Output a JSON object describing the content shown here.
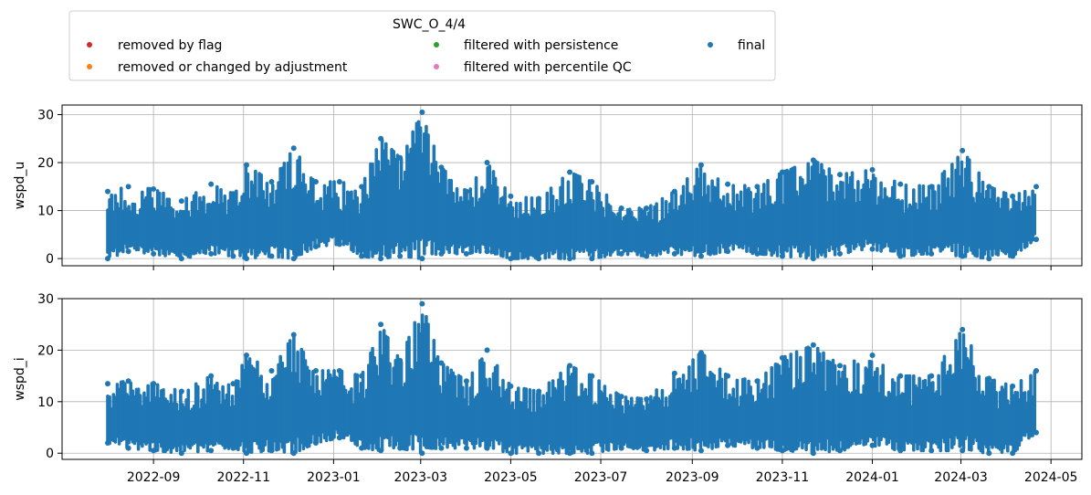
{
  "chart_data": {
    "type": "scatter",
    "legend": {
      "title": "SWC_O_4/4",
      "placement": "top-left",
      "entries": [
        {
          "label": "removed by flag",
          "color": "#d62728"
        },
        {
          "label": "filtered with persistence",
          "color": "#2ca02c"
        },
        {
          "label": "final",
          "color": "#1f77b4"
        },
        {
          "label": "removed or changed by adjustment",
          "color": "#ff7f0e"
        },
        {
          "label": "filtered with percentile QC",
          "color": "#e377c2"
        }
      ]
    },
    "x_range": [
      "2022-08-01",
      "2024-04-21"
    ],
    "xticks": [
      "2022-09",
      "2022-11",
      "2023-01",
      "2023-03",
      "2023-05",
      "2023-07",
      "2023-09",
      "2023-11",
      "2024-01",
      "2024-03",
      "2024-05"
    ],
    "grid": true,
    "series_color": "#1f77b4",
    "panels": [
      {
        "ylabel": "wspd_u",
        "yticks": [
          0,
          10,
          20,
          30
        ],
        "ylim": [
          -1.5,
          32
        ],
        "envelope": [
          {
            "x": "2022-08-01",
            "lo": 0.0,
            "hi": 14.0
          },
          {
            "x": "2022-08-15",
            "lo": 1.5,
            "hi": 15.0
          },
          {
            "x": "2022-09-01",
            "lo": 1.0,
            "hi": 14.5
          },
          {
            "x": "2022-09-20",
            "lo": 0.0,
            "hi": 12.0
          },
          {
            "x": "2022-10-10",
            "lo": 1.0,
            "hi": 15.5
          },
          {
            "x": "2022-10-25",
            "lo": 0.5,
            "hi": 13.5
          },
          {
            "x": "2022-11-03",
            "lo": 0.0,
            "hi": 19.5
          },
          {
            "x": "2022-11-20",
            "lo": 0.5,
            "hi": 16.0
          },
          {
            "x": "2022-12-05",
            "lo": 0.0,
            "hi": 23.0
          },
          {
            "x": "2022-12-20",
            "lo": 2.5,
            "hi": 16.0
          },
          {
            "x": "2023-01-05",
            "lo": 3.0,
            "hi": 16.0
          },
          {
            "x": "2023-01-20",
            "lo": 0.5,
            "hi": 15.0
          },
          {
            "x": "2023-02-02",
            "lo": 0.0,
            "hi": 25.0
          },
          {
            "x": "2023-02-15",
            "lo": 0.5,
            "hi": 21.0
          },
          {
            "x": "2023-03-02",
            "lo": 0.0,
            "hi": 30.5
          },
          {
            "x": "2023-03-15",
            "lo": 1.0,
            "hi": 19.0
          },
          {
            "x": "2023-04-01",
            "lo": 1.0,
            "hi": 14.0
          },
          {
            "x": "2023-04-15",
            "lo": 1.5,
            "hi": 20.0
          },
          {
            "x": "2023-05-01",
            "lo": 0.0,
            "hi": 13.0
          },
          {
            "x": "2023-05-20",
            "lo": 0.0,
            "hi": 12.5
          },
          {
            "x": "2023-06-10",
            "lo": 0.0,
            "hi": 18.0
          },
          {
            "x": "2023-06-25",
            "lo": 0.0,
            "hi": 16.0
          },
          {
            "x": "2023-07-15",
            "lo": 1.0,
            "hi": 10.5
          },
          {
            "x": "2023-08-01",
            "lo": 0.5,
            "hi": 10.5
          },
          {
            "x": "2023-08-20",
            "lo": 1.0,
            "hi": 14.0
          },
          {
            "x": "2023-09-07",
            "lo": 0.5,
            "hi": 19.5
          },
          {
            "x": "2023-09-25",
            "lo": 1.5,
            "hi": 15.5
          },
          {
            "x": "2023-10-15",
            "lo": 1.0,
            "hi": 15.0
          },
          {
            "x": "2023-11-01",
            "lo": 0.5,
            "hi": 18.0
          },
          {
            "x": "2023-11-22",
            "lo": 0.0,
            "hi": 20.5
          },
          {
            "x": "2023-12-10",
            "lo": 1.0,
            "hi": 17.5
          },
          {
            "x": "2024-01-01",
            "lo": 2.0,
            "hi": 18.5
          },
          {
            "x": "2024-01-20",
            "lo": 0.5,
            "hi": 15.5
          },
          {
            "x": "2024-02-10",
            "lo": 1.0,
            "hi": 15.0
          },
          {
            "x": "2024-03-02",
            "lo": 0.5,
            "hi": 22.5
          },
          {
            "x": "2024-03-20",
            "lo": 0.0,
            "hi": 15.0
          },
          {
            "x": "2024-04-05",
            "lo": 0.5,
            "hi": 13.0
          },
          {
            "x": "2024-04-21",
            "lo": 4.0,
            "hi": 15.0
          }
        ]
      },
      {
        "ylabel": "wspd_i",
        "yticks": [
          0,
          10,
          20,
          30
        ],
        "ylim": [
          -1.2,
          30
        ],
        "envelope": [
          {
            "x": "2022-08-01",
            "lo": 2.0,
            "hi": 13.5
          },
          {
            "x": "2022-08-15",
            "lo": 1.0,
            "hi": 14.0
          },
          {
            "x": "2022-09-01",
            "lo": 0.5,
            "hi": 13.5
          },
          {
            "x": "2022-09-20",
            "lo": 0.0,
            "hi": 12.0
          },
          {
            "x": "2022-10-10",
            "lo": 0.5,
            "hi": 15.0
          },
          {
            "x": "2022-10-25",
            "lo": 1.0,
            "hi": 13.5
          },
          {
            "x": "2022-11-03",
            "lo": 0.0,
            "hi": 19.0
          },
          {
            "x": "2022-11-20",
            "lo": 0.5,
            "hi": 16.0
          },
          {
            "x": "2022-12-05",
            "lo": 0.0,
            "hi": 23.0
          },
          {
            "x": "2022-12-20",
            "lo": 2.0,
            "hi": 16.0
          },
          {
            "x": "2023-01-05",
            "lo": 3.0,
            "hi": 16.0
          },
          {
            "x": "2023-01-20",
            "lo": 1.0,
            "hi": 15.0
          },
          {
            "x": "2023-02-02",
            "lo": 0.5,
            "hi": 25.0
          },
          {
            "x": "2023-02-15",
            "lo": 1.0,
            "hi": 18.0
          },
          {
            "x": "2023-03-02",
            "lo": 0.0,
            "hi": 29.0
          },
          {
            "x": "2023-03-15",
            "lo": 1.0,
            "hi": 17.5
          },
          {
            "x": "2023-04-01",
            "lo": 1.0,
            "hi": 14.0
          },
          {
            "x": "2023-04-15",
            "lo": 1.0,
            "hi": 20.0
          },
          {
            "x": "2023-05-01",
            "lo": 0.0,
            "hi": 13.0
          },
          {
            "x": "2023-05-20",
            "lo": 0.0,
            "hi": 12.0
          },
          {
            "x": "2023-06-10",
            "lo": 0.0,
            "hi": 17.0
          },
          {
            "x": "2023-06-25",
            "lo": 0.0,
            "hi": 15.0
          },
          {
            "x": "2023-07-15",
            "lo": 1.0,
            "hi": 11.0
          },
          {
            "x": "2023-08-01",
            "lo": 0.5,
            "hi": 10.5
          },
          {
            "x": "2023-08-20",
            "lo": 1.0,
            "hi": 15.5
          },
          {
            "x": "2023-09-07",
            "lo": 0.5,
            "hi": 19.5
          },
          {
            "x": "2023-09-25",
            "lo": 1.5,
            "hi": 15.0
          },
          {
            "x": "2023-10-15",
            "lo": 1.0,
            "hi": 14.0
          },
          {
            "x": "2023-11-01",
            "lo": 0.5,
            "hi": 18.5
          },
          {
            "x": "2023-11-22",
            "lo": 0.0,
            "hi": 21.0
          },
          {
            "x": "2023-12-10",
            "lo": 0.5,
            "hi": 17.0
          },
          {
            "x": "2024-01-01",
            "lo": 1.5,
            "hi": 19.0
          },
          {
            "x": "2024-01-20",
            "lo": 0.5,
            "hi": 15.0
          },
          {
            "x": "2024-02-10",
            "lo": 0.5,
            "hi": 15.0
          },
          {
            "x": "2024-03-02",
            "lo": 0.5,
            "hi": 24.0
          },
          {
            "x": "2024-03-20",
            "lo": 0.0,
            "hi": 14.5
          },
          {
            "x": "2024-04-05",
            "lo": 0.0,
            "hi": 13.0
          },
          {
            "x": "2024-04-21",
            "lo": 4.0,
            "hi": 16.0
          }
        ]
      }
    ]
  }
}
